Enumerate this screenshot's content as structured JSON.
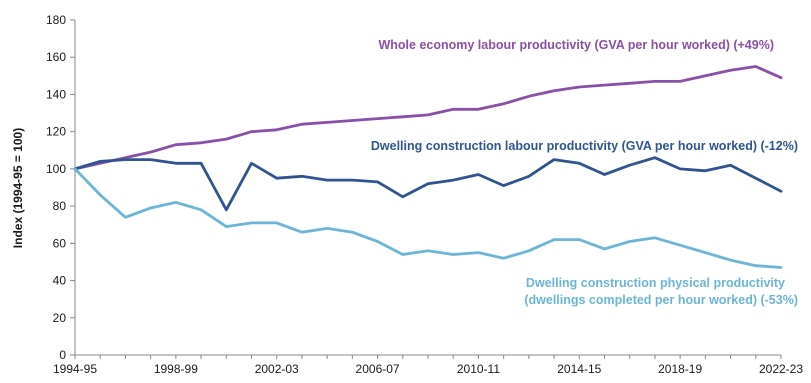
{
  "chart_data": {
    "type": "line",
    "ylabel": "Index (1994-95 = 100)",
    "ylim": [
      0,
      180
    ],
    "yticks": [
      0,
      20,
      40,
      60,
      80,
      100,
      120,
      140,
      160,
      180
    ],
    "grid": false,
    "x": [
      "1994-95",
      "1995-96",
      "1996-97",
      "1997-98",
      "1998-99",
      "1999-00",
      "2000-01",
      "2001-02",
      "2002-03",
      "2003-04",
      "2004-05",
      "2005-06",
      "2006-07",
      "2007-08",
      "2008-09",
      "2009-10",
      "2010-11",
      "2011-12",
      "2012-13",
      "2013-14",
      "2014-15",
      "2015-16",
      "2016-17",
      "2017-18",
      "2018-19",
      "2019-20",
      "2020-21",
      "2021-22",
      "2022-23"
    ],
    "xtick_labels": [
      "1994-95",
      "1998-99",
      "2002-03",
      "2006-07",
      "2010-11",
      "2014-15",
      "2018-19",
      "2022-23"
    ],
    "series": [
      {
        "name": "Whole economy labour productivity (GVA per hour worked) (+49%)",
        "color": "#8a4fa8",
        "values": [
          100,
          103,
          106,
          109,
          113,
          114,
          116,
          120,
          121,
          124,
          125,
          126,
          127,
          128,
          129,
          132,
          132,
          135,
          139,
          142,
          144,
          145,
          146,
          147,
          147,
          150,
          153,
          155,
          149
        ]
      },
      {
        "name": "Dwelling construction labour productivity (GVA per hour worked) (-12%)",
        "color": "#2e5591",
        "values": [
          100,
          104,
          105,
          105,
          103,
          103,
          78,
          103,
          95,
          96,
          94,
          94,
          93,
          85,
          92,
          94,
          97,
          91,
          96,
          105,
          103,
          97,
          102,
          106,
          100,
          99,
          102,
          95,
          88
        ]
      },
      {
        "name_lines": [
          "Dwelling construction physical productivity",
          "(dwellings completed per hour worked) (-53%)"
        ],
        "color": "#6bb5d8",
        "values": [
          100,
          86,
          74,
          79,
          82,
          78,
          69,
          71,
          71,
          66,
          68,
          66,
          61,
          54,
          56,
          54,
          55,
          52,
          56,
          62,
          62,
          57,
          61,
          63,
          59,
          55,
          51,
          48,
          47
        ]
      }
    ]
  }
}
